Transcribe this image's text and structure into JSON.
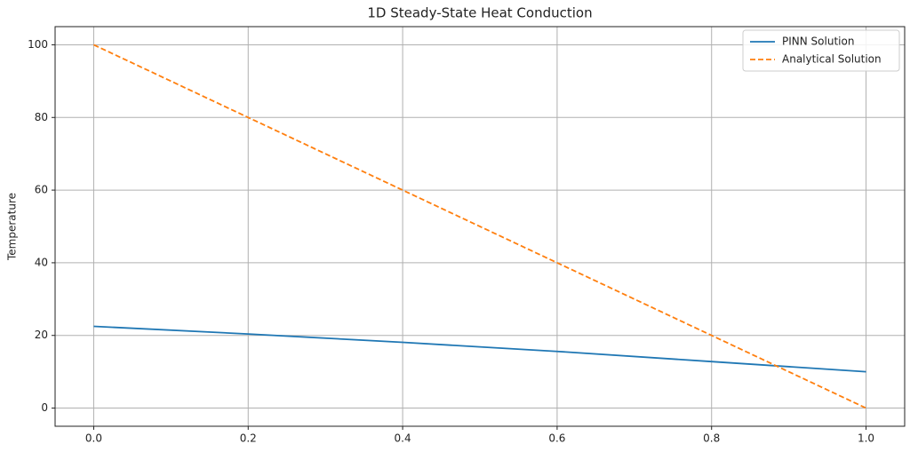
{
  "chart_data": {
    "type": "line",
    "title": "1D Steady-State Heat Conduction",
    "ylabel": "Temperature",
    "x": [
      0,
      0.2,
      0.4,
      0.6,
      0.8,
      1.0
    ],
    "series": [
      {
        "name": "PINN Solution",
        "color": "#1f77b4",
        "linestyle": "solid",
        "values": [
          22.5,
          20.4,
          18.1,
          15.6,
          12.8,
          10.0
        ]
      },
      {
        "name": "Analytical Solution",
        "color": "#ff7f0e",
        "linestyle": "dashed",
        "values": [
          100,
          80,
          60,
          40,
          20,
          0
        ]
      }
    ],
    "xlim": [
      -0.05,
      1.05
    ],
    "ylim": [
      -5,
      105
    ],
    "xticks": [
      {
        "value": 0,
        "label": "0.0"
      },
      {
        "value": 0.2,
        "label": "0.2"
      },
      {
        "value": 0.4,
        "label": "0.4"
      },
      {
        "value": 0.6,
        "label": "0.6"
      },
      {
        "value": 0.8,
        "label": "0.8"
      },
      {
        "value": 1.0,
        "label": "1.0"
      }
    ],
    "yticks": [
      0,
      20,
      40,
      60,
      80,
      100
    ],
    "grid": true,
    "legend": "upper right"
  }
}
